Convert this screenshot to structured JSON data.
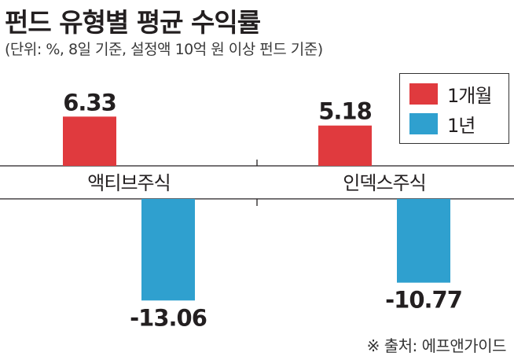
{
  "header": {
    "title": "펀드 유형별 평균 수익률",
    "subtitle": "(단위: %, 8일 기준, 설정액 10억 원 이상 펀드 기준)"
  },
  "legend": {
    "items": [
      {
        "label": "1개월",
        "color": "#e03a3e"
      },
      {
        "label": "1년",
        "color": "#2fa0cf"
      }
    ]
  },
  "footer": {
    "source": "※ 출처: 에프앤가이드"
  },
  "chart_data": {
    "type": "bar",
    "categories": [
      "액티브주식",
      "인덱스주식"
    ],
    "series": [
      {
        "name": "1개월",
        "values": [
          6.33,
          5.18
        ],
        "labels": [
          "6.33",
          "5.18"
        ],
        "color": "#e03a3e"
      },
      {
        "name": "1년",
        "values": [
          -13.06,
          -10.77
        ],
        "labels": [
          "-13.06",
          "-10.77"
        ],
        "color": "#2fa0cf"
      }
    ],
    "title": "펀드 유형별 평균 수익률",
    "unit": "%"
  }
}
